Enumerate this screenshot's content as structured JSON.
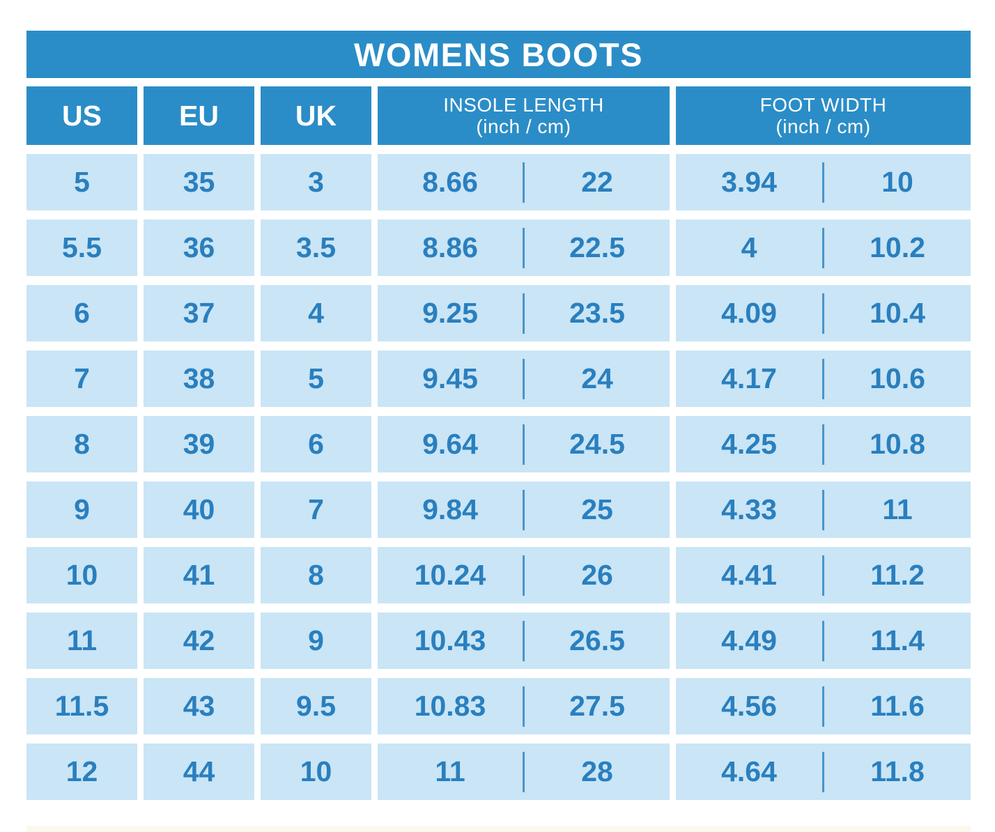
{
  "title": "WOMENS BOOTS",
  "table": {
    "headers": {
      "us": "US",
      "eu": "EU",
      "uk": "UK",
      "insole_line1": "INSOLE LENGTH",
      "insole_line2": "(inch / cm)",
      "foot_line1": "FOOT WIDTH",
      "foot_line2": "(inch / cm)"
    },
    "rows": [
      {
        "us": "5",
        "eu": "35",
        "uk": "3",
        "insole_in": "8.66",
        "insole_cm": "22",
        "width_in": "3.94",
        "width_cm": "10"
      },
      {
        "us": "5.5",
        "eu": "36",
        "uk": "3.5",
        "insole_in": "8.86",
        "insole_cm": "22.5",
        "width_in": "4",
        "width_cm": "10.2"
      },
      {
        "us": "6",
        "eu": "37",
        "uk": "4",
        "insole_in": "9.25",
        "insole_cm": "23.5",
        "width_in": "4.09",
        "width_cm": "10.4"
      },
      {
        "us": "7",
        "eu": "38",
        "uk": "5",
        "insole_in": "9.45",
        "insole_cm": "24",
        "width_in": "4.17",
        "width_cm": "10.6"
      },
      {
        "us": "8",
        "eu": "39",
        "uk": "6",
        "insole_in": "9.64",
        "insole_cm": "24.5",
        "width_in": "4.25",
        "width_cm": "10.8"
      },
      {
        "us": "9",
        "eu": "40",
        "uk": "7",
        "insole_in": "9.84",
        "insole_cm": "25",
        "width_in": "4.33",
        "width_cm": "11"
      },
      {
        "us": "10",
        "eu": "41",
        "uk": "8",
        "insole_in": "10.24",
        "insole_cm": "26",
        "width_in": "4.41",
        "width_cm": "11.2"
      },
      {
        "us": "11",
        "eu": "42",
        "uk": "9",
        "insole_in": "10.43",
        "insole_cm": "26.5",
        "width_in": "4.49",
        "width_cm": "11.4"
      },
      {
        "us": "11.5",
        "eu": "43",
        "uk": "9.5",
        "insole_in": "10.83",
        "insole_cm": "27.5",
        "width_in": "4.56",
        "width_cm": "11.6"
      },
      {
        "us": "12",
        "eu": "44",
        "uk": "10",
        "insole_in": "11",
        "insole_cm": "28",
        "width_in": "4.64",
        "width_cm": "11.8"
      }
    ]
  },
  "colors": {
    "blue": "#2b8dc7",
    "light-blue": "#c9e5f6",
    "cell-text": "#2a7fbe",
    "cream": "#fdf8ee",
    "white": "#ffffff"
  },
  "chart_data": {
    "type": "table",
    "title": "WOMENS BOOTS",
    "columns": [
      "US",
      "EU",
      "UK",
      "INSOLE LENGTH (inch)",
      "INSOLE LENGTH (cm)",
      "FOOT WIDTH (inch)",
      "FOOT WIDTH (cm)"
    ],
    "rows": [
      [
        5,
        35,
        3,
        8.66,
        22,
        3.94,
        10
      ],
      [
        5.5,
        36,
        3.5,
        8.86,
        22.5,
        4,
        10.2
      ],
      [
        6,
        37,
        4,
        9.25,
        23.5,
        4.09,
        10.4
      ],
      [
        7,
        38,
        5,
        9.45,
        24,
        4.17,
        10.6
      ],
      [
        8,
        39,
        6,
        9.64,
        24.5,
        4.25,
        10.8
      ],
      [
        9,
        40,
        7,
        9.84,
        25,
        4.33,
        11
      ],
      [
        10,
        41,
        8,
        10.24,
        26,
        4.41,
        11.2
      ],
      [
        11,
        42,
        9,
        10.43,
        26.5,
        4.49,
        11.4
      ],
      [
        11.5,
        43,
        9.5,
        10.83,
        27.5,
        4.56,
        11.6
      ],
      [
        12,
        44,
        10,
        11,
        28,
        4.64,
        11.8
      ]
    ],
    "legend_position": "none",
    "grid": false
  }
}
